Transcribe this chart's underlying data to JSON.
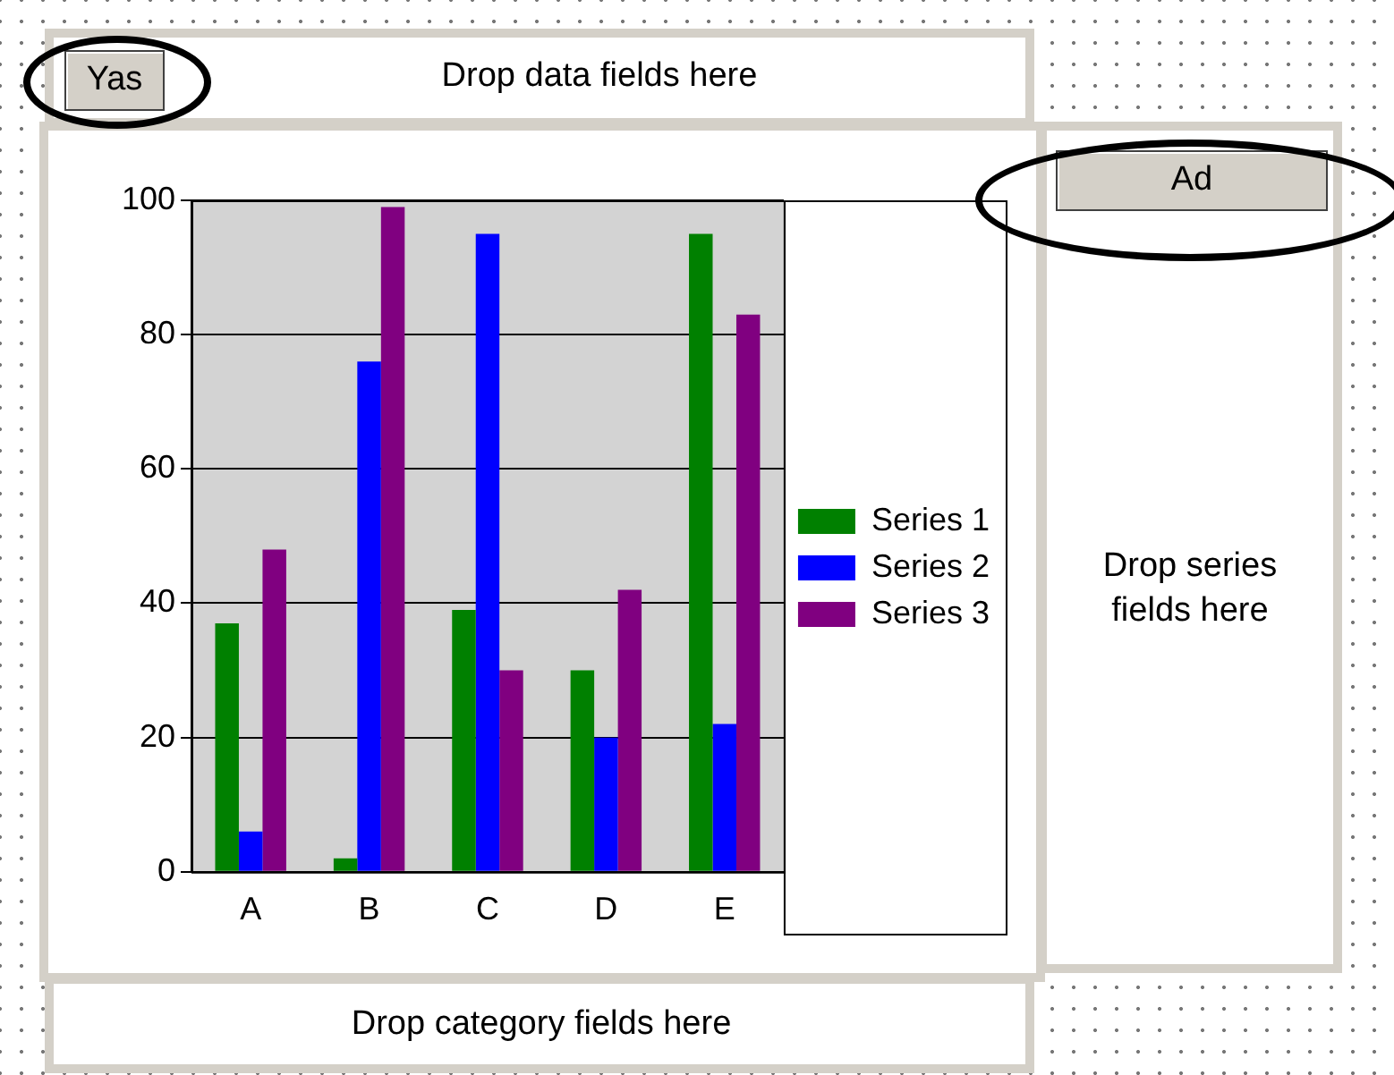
{
  "chart_data": {
    "type": "bar",
    "categories": [
      "A",
      "B",
      "C",
      "D",
      "E"
    ],
    "series": [
      {
        "name": "Series 1",
        "color": "#008000",
        "values": [
          37,
          2,
          39,
          30,
          95
        ]
      },
      {
        "name": "Series 2",
        "color": "#0000ff",
        "values": [
          6,
          76,
          95,
          20,
          22
        ]
      },
      {
        "name": "Series 3",
        "color": "#800080",
        "values": [
          48,
          99,
          30,
          42,
          83
        ]
      }
    ],
    "ylim": [
      0,
      100
    ],
    "yticks": [
      0,
      20,
      40,
      60,
      80,
      100
    ],
    "grid": "y",
    "legend": "right",
    "annotations": [
      "Yas",
      "Drop data fields here",
      "Ad",
      "Drop series fields here",
      "Drop category fields here"
    ]
  }
}
